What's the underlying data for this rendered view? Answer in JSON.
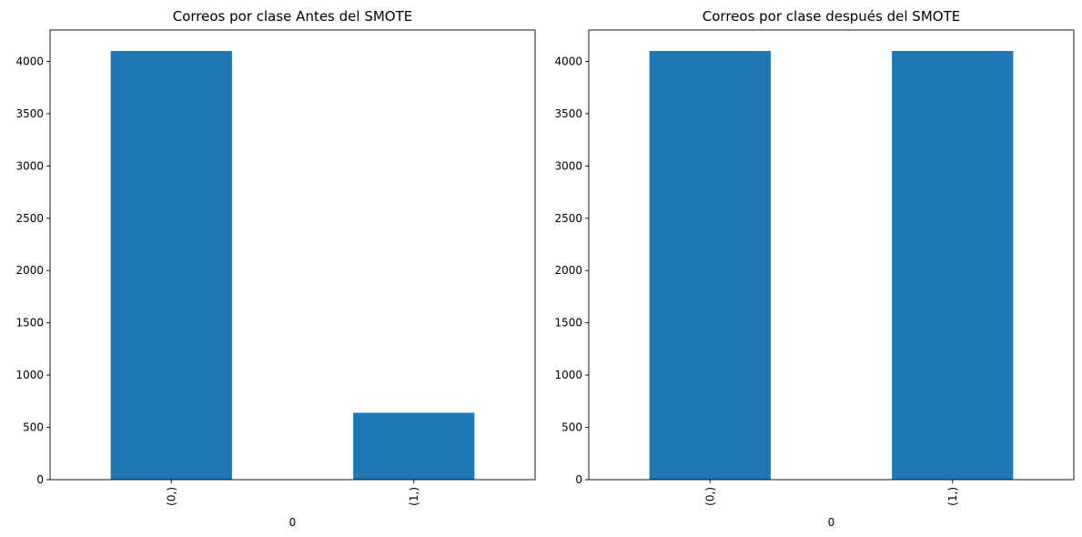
{
  "figure": {
    "bar_color": "#1f77b4",
    "axis_color": "#000000",
    "background": "#ffffff"
  },
  "chart_data": [
    {
      "type": "bar",
      "title": "Correos por clase Antes del SMOTE",
      "xlabel": "0",
      "ylabel": "",
      "categories": [
        "(0,)",
        "(1,)"
      ],
      "values": [
        4100,
        640
      ],
      "ylim": [
        0,
        4300
      ],
      "yticks": [
        0,
        500,
        1000,
        1500,
        2000,
        2500,
        3000,
        3500,
        4000
      ],
      "grid": false,
      "legend": null
    },
    {
      "type": "bar",
      "title": "Correos por clase después del SMOTE",
      "xlabel": "0",
      "ylabel": "",
      "categories": [
        "(0,)",
        "(1,)"
      ],
      "values": [
        4100,
        4100
      ],
      "ylim": [
        0,
        4300
      ],
      "yticks": [
        0,
        500,
        1000,
        1500,
        2000,
        2500,
        3000,
        3500,
        4000
      ],
      "grid": false,
      "legend": null
    }
  ]
}
